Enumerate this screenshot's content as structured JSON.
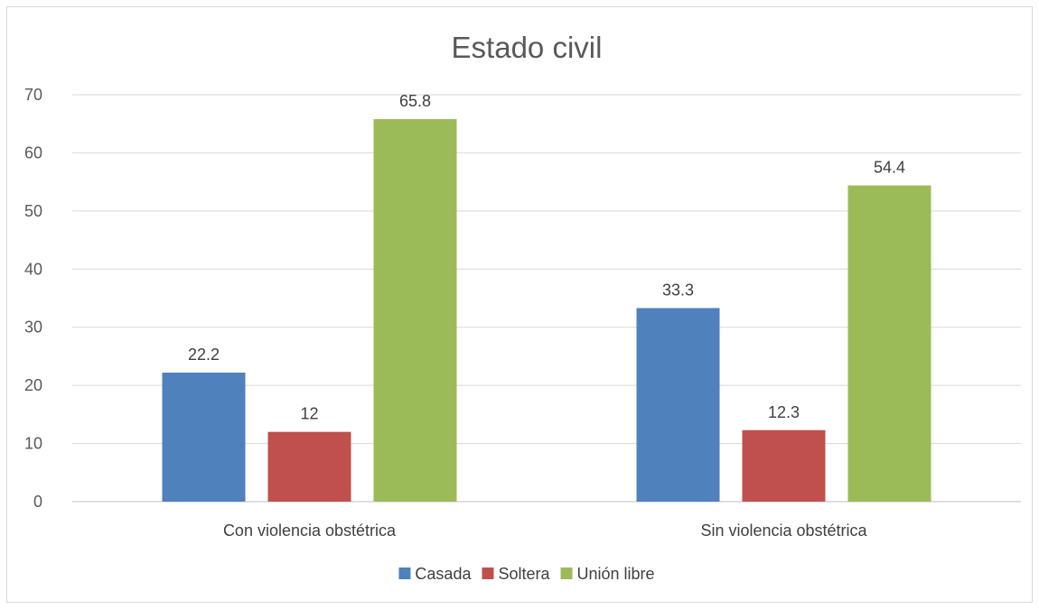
{
  "chart_data": {
    "type": "bar",
    "title": "Estado civil",
    "xlabel": "",
    "ylabel": "",
    "categories": [
      "Con violencia obstétrica",
      "Sin violencia obstétrica"
    ],
    "series": [
      {
        "name": "Casada",
        "values": [
          22.2,
          33.3
        ],
        "labels": [
          "22.2",
          "33.3"
        ],
        "color": "#4f81bd"
      },
      {
        "name": "Soltera",
        "values": [
          12,
          12.3
        ],
        "labels": [
          "12",
          "12.3"
        ],
        "color": "#c0504d"
      },
      {
        "name": "Unión libre",
        "values": [
          65.8,
          54.4
        ],
        "labels": [
          "65.8",
          "54.4"
        ],
        "color": "#9bbb59"
      }
    ],
    "ylim": [
      0,
      70
    ],
    "yticks": [
      "0",
      "10",
      "20",
      "30",
      "40",
      "50",
      "60",
      "70"
    ],
    "grid": true,
    "legend": "bottom"
  }
}
